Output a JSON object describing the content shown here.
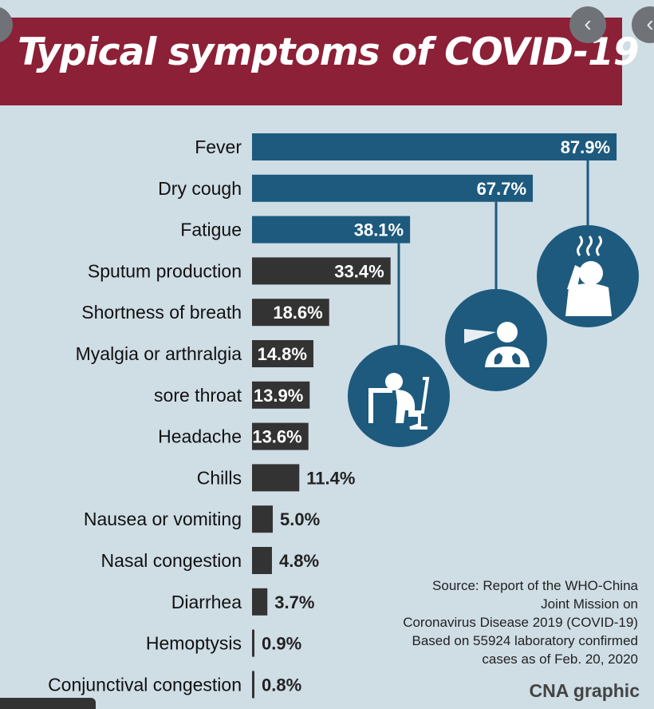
{
  "title": "Typical symptoms of COVID-19",
  "nav": {
    "prev_icon": "‹"
  },
  "colors": {
    "banner": "#8c2036",
    "highlight_bar": "#1d5a7e",
    "other_bar": "#333333",
    "background": "#cfdde5"
  },
  "chart_data": {
    "type": "bar",
    "orientation": "horizontal",
    "unit": "%",
    "categories": [
      "Fever",
      "Dry cough",
      "Fatigue",
      "Sputum production",
      "Shortness of breath",
      "Myalgia or arthralgia",
      "sore throat",
      "Headache",
      "Chills",
      "Nausea or vomiting",
      "Nasal congestion",
      "Diarrhea",
      "Hemoptysis",
      "Conjunctival congestion"
    ],
    "values": [
      87.9,
      67.7,
      38.1,
      33.4,
      18.6,
      14.8,
      13.9,
      13.6,
      11.4,
      5.0,
      4.8,
      3.7,
      0.9,
      0.8
    ],
    "labels": [
      "87.9%",
      "67.7%",
      "38.1%",
      "33.4%",
      "18.6%",
      "14.8%",
      "13.9%",
      "13.6%",
      "11.4%",
      "5.0%",
      "4.8%",
      "3.7%",
      "0.9%",
      "0.8%"
    ],
    "highlighted": [
      true,
      true,
      true,
      false,
      false,
      false,
      false,
      false,
      false,
      false,
      false,
      false,
      false,
      false
    ],
    "icons": [
      "fever-person-icon",
      "cough-person-icon",
      "fatigue-person-icon"
    ]
  },
  "source": {
    "lines": [
      "Source: Report of the WHO-China",
      "Joint Mission on",
      "Coronavirus Disease 2019 (COVID-19)",
      "Based on 55924 laboratory confirmed",
      "cases as of Feb. 20, 2020"
    ]
  },
  "credit": "CNA graphic"
}
